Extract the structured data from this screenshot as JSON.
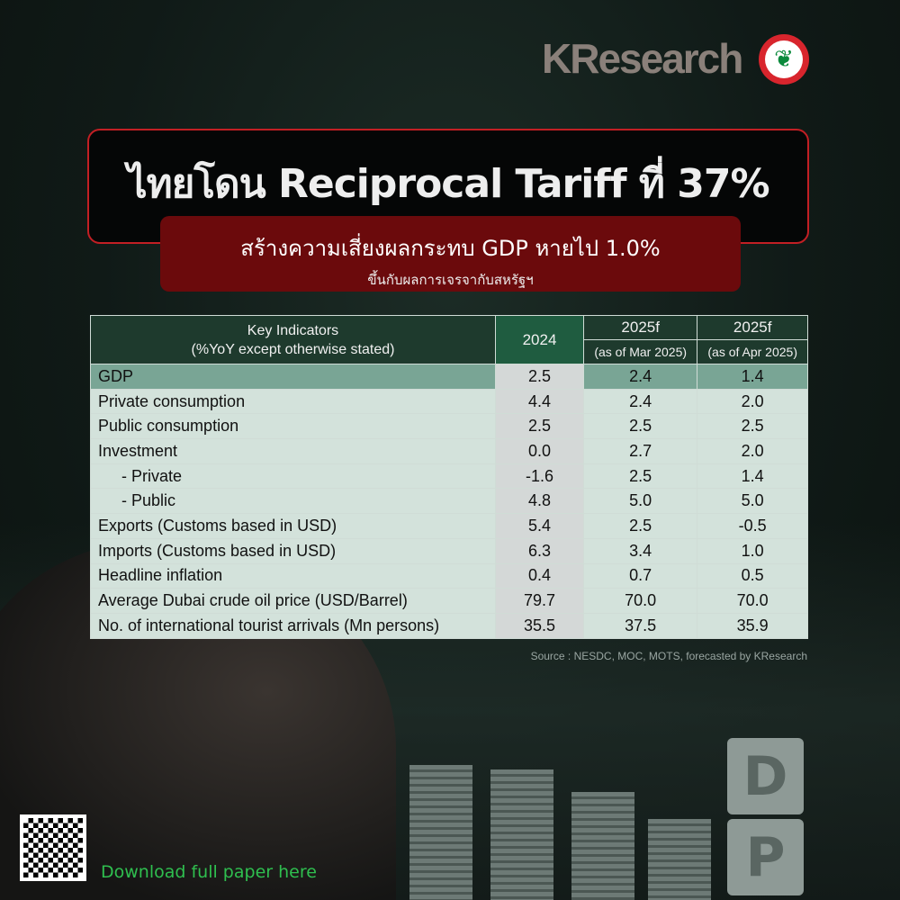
{
  "brand": {
    "logo_text": "KResearch"
  },
  "title": "ไทยโดน Reciprocal Tariff ที่ 37%",
  "subtitle": "สร้างความเสี่ยงผลกระทบ GDP หายไป 1.0%",
  "subnote": "ขึ้นกับผลการเจรจากับสหรัฐฯ",
  "table": {
    "header": {
      "indicator": "Key Indicators",
      "indicator_note": "(%YoY except otherwise stated)",
      "col1": "2024",
      "col2": "2025f",
      "col2_note": "(as of Mar 2025)",
      "col3": "2025f",
      "col3_note": "(as of Apr 2025)"
    },
    "rows": [
      {
        "label": "GDP",
        "v2024": "2.5",
        "mar": "2.4",
        "apr": "1.4"
      },
      {
        "label": "Private consumption",
        "v2024": "4.4",
        "mar": "2.4",
        "apr": "2.0"
      },
      {
        "label": "Public consumption",
        "v2024": "2.5",
        "mar": "2.5",
        "apr": "2.5"
      },
      {
        "label": "Investment",
        "v2024": "0.0",
        "mar": "2.7",
        "apr": "2.0"
      },
      {
        "label": "  - Private",
        "v2024": "-1.6",
        "mar": "2.5",
        "apr": "1.4"
      },
      {
        "label": "  - Public",
        "v2024": "4.8",
        "mar": "5.0",
        "apr": "5.0"
      },
      {
        "label": "Exports (Customs based in USD)",
        "v2024": "5.4",
        "mar": "2.5",
        "apr": "-0.5"
      },
      {
        "label": "Imports (Customs based in USD)",
        "v2024": "6.3",
        "mar": "3.4",
        "apr": "1.0"
      },
      {
        "label": "Headline inflation",
        "v2024": "0.4",
        "mar": "0.7",
        "apr": "0.5"
      },
      {
        "label": "Average Dubai crude oil price (USD/Barrel)",
        "v2024": "79.7",
        "mar": "70.0",
        "apr": "70.0"
      },
      {
        "label": "No. of international tourist arrivals (Mn persons)",
        "v2024": "35.5",
        "mar": "37.5",
        "apr": "35.9"
      }
    ]
  },
  "source": "Source : NESDC, MOC, MOTS, forecasted by KResearch",
  "download_label": "Download full paper here",
  "colors": {
    "header": "#1e3a2d",
    "highlight_row": "#79a595",
    "title_border": "#c21f24",
    "subtitle_bg": "#6b0a0c",
    "download": "#2fbf4f"
  }
}
